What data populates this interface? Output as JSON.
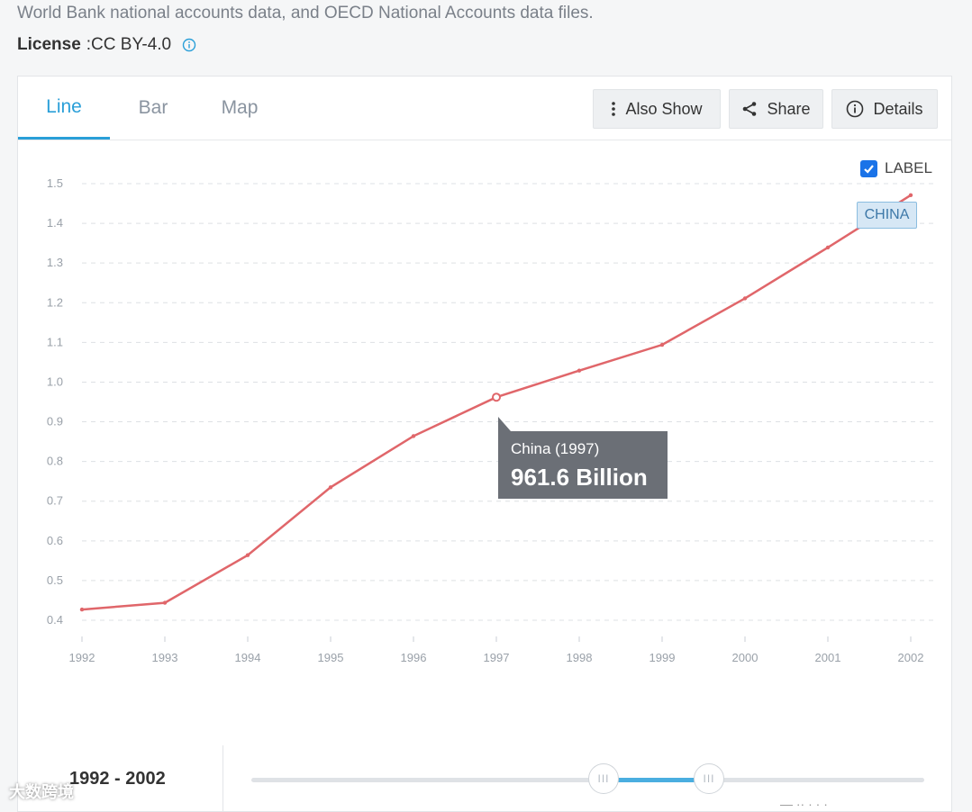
{
  "source_text": "World Bank national accounts data, and OECD National Accounts data files.",
  "license": {
    "label": "License",
    "separator": " : ",
    "value": "CC BY-4.0"
  },
  "tabs": [
    {
      "label": "Line",
      "active": true
    },
    {
      "label": "Bar",
      "active": false
    },
    {
      "label": "Map",
      "active": false
    }
  ],
  "actions": {
    "also_show": "Also Show",
    "share": "Share",
    "details": "Details"
  },
  "label_toggle": {
    "text": "LABEL",
    "checked": true
  },
  "series_tag": "CHINA",
  "tooltip": {
    "title": "China (1997)",
    "value": "961.6 Billion"
  },
  "range": {
    "label": "1992 - 2002",
    "handle_glyph": "III"
  },
  "watermark": "大数跨境",
  "watermark_right": "— ·· · · ·",
  "colors": {
    "accent": "#2a9fd8",
    "line": "#e0666a",
    "tooltip_bg": "#6b6f76",
    "checkbox": "#1a73e8"
  },
  "icons": [
    "info-icon",
    "more-vert-icon",
    "share-icon",
    "info-outline-icon",
    "check-icon"
  ],
  "chart_data": {
    "type": "line",
    "x": [
      "1992",
      "1993",
      "1994",
      "1995",
      "1996",
      "1997",
      "1998",
      "1999",
      "2000",
      "2001",
      "2002"
    ],
    "series": [
      {
        "name": "CHINA",
        "values": [
          0.427,
          0.444,
          0.564,
          0.735,
          0.864,
          0.962,
          1.029,
          1.094,
          1.211,
          1.339,
          1.471
        ]
      }
    ],
    "yticks": [
      "0.4",
      "0.5",
      "0.6",
      "0.7",
      "0.8",
      "0.9",
      "1.0",
      "1.1",
      "1.2",
      "1.3",
      "1.4",
      "1.5"
    ],
    "ylim": [
      0.4,
      1.5
    ],
    "highlight_index": 5,
    "grid": true,
    "legend": "top-right"
  }
}
